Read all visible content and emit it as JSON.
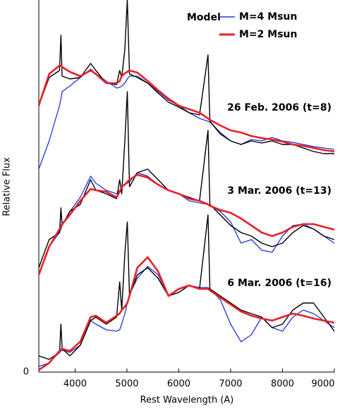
{
  "chart_data": {
    "type": "line",
    "xlabel": "Rest Wavelength (A)",
    "ylabel": "Relative Flux",
    "xlim": [
      3300,
      9000
    ],
    "xticks": [
      4000,
      5000,
      6000,
      7000,
      8000,
      9000
    ],
    "ylim": [
      0,
      528
    ],
    "yticks": [
      0
    ],
    "legend_title": "Model",
    "legend": "upper right",
    "observed_color": "#000000",
    "models": [
      {
        "name": "M=4 Msun",
        "color": "#2233dd"
      },
      {
        "name": "M=2 Msun",
        "color": "#e8202a"
      }
    ],
    "x": [
      3300,
      3500,
      3700,
      3727,
      3750,
      3900,
      4100,
      4300,
      4400,
      4600,
      4800,
      4861,
      4900,
      4959,
      5007,
      5050,
      5200,
      5400,
      5600,
      5800,
      6000,
      6200,
      6400,
      6563,
      6600,
      6800,
      7000,
      7200,
      7400,
      7600,
      7800,
      8000,
      8200,
      8400,
      8600,
      8800,
      9000
    ],
    "epochs": [
      {
        "label": "26 Feb. 2006 (t=8)",
        "observed": [
          378,
          418,
          428,
          478,
          420,
          416,
          418,
          438,
          428,
          410,
          408,
          428,
          418,
          458,
          528,
          423,
          418,
          410,
          396,
          383,
          376,
          368,
          365,
          450,
          356,
          338,
          328,
          323,
          328,
          325,
          328,
          323,
          323,
          318,
          313,
          310,
          310
        ],
        "models": [
          [
            288,
            328,
            378,
            388,
            398,
            406,
            418,
            430,
            423,
            413,
            403,
            404,
            406,
            410,
            416,
            420,
            420,
            410,
            398,
            386,
            378,
            368,
            360,
            356,
            355,
            340,
            328,
            323,
            330,
            328,
            333,
            328,
            326,
            323,
            320,
            318,
            316
          ],
          [
            378,
            423,
            435,
            435,
            433,
            426,
            420,
            428,
            423,
            410,
            410,
            413,
            420,
            424,
            426,
            428,
            425,
            413,
            400,
            388,
            378,
            373,
            368,
            360,
            358,
            350,
            343,
            340,
            335,
            332,
            330,
            327,
            323,
            321,
            318,
            315,
            313
          ]
        ]
      },
      {
        "label": "3 Mar. 2006 (t=13)",
        "observed": [
          148,
          188,
          198,
          233,
          208,
          228,
          238,
          273,
          258,
          253,
          246,
          273,
          253,
          328,
          398,
          263,
          283,
          288,
          273,
          258,
          253,
          248,
          243,
          343,
          238,
          223,
          208,
          198,
          193,
          183,
          178,
          183,
          198,
          208,
          203,
          193,
          188
        ],
        "models": [
          [
            138,
            178,
            198,
            203,
            208,
            228,
            248,
            278,
            268,
            258,
            253,
            258,
            263,
            266,
            268,
            270,
            283,
            278,
            266,
            258,
            253,
            243,
            240,
            238,
            236,
            228,
            213,
            183,
            188,
            173,
            170,
            193,
            208,
            210,
            203,
            193,
            183
          ],
          [
            138,
            178,
            203,
            206,
            210,
            223,
            243,
            260,
            258,
            256,
            248,
            256,
            263,
            266,
            270,
            273,
            280,
            276,
            266,
            258,
            253,
            246,
            243,
            238,
            236,
            230,
            226,
            218,
            208,
            198,
            193,
            198,
            206,
            210,
            210,
            206,
            202
          ]
        ]
      },
      {
        "label": "6 Mar. 2006 (t=16)",
        "observed": [
          23,
          18,
          28,
          68,
          33,
          23,
          38,
          73,
          78,
          68,
          78,
          128,
          88,
          168,
          213,
          108,
          138,
          148,
          133,
          108,
          113,
          123,
          118,
          223,
          118,
          108,
          98,
          88,
          83,
          78,
          63,
          68,
          88,
          98,
          98,
          78,
          58
        ],
        "models": [
          [
            8,
            13,
            28,
            30,
            31,
            28,
            38,
            73,
            68,
            60,
            58,
            60,
            68,
            83,
            98,
            110,
            133,
            150,
            138,
            108,
            113,
            123,
            120,
            120,
            118,
            103,
            68,
            43,
            53,
            78,
            63,
            58,
            78,
            88,
            83,
            73,
            63
          ],
          [
            3,
            13,
            30,
            32,
            33,
            30,
            43,
            78,
            80,
            70,
            80,
            83,
            88,
            93,
            98,
            108,
            148,
            163,
            143,
            108,
            118,
            123,
            118,
            118,
            116,
            106,
            96,
            86,
            80,
            76,
            73,
            78,
            83,
            80,
            76,
            73,
            70
          ]
        ]
      }
    ]
  }
}
